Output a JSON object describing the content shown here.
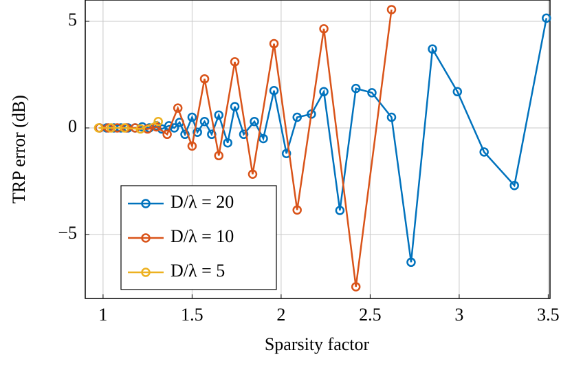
{
  "chart_data": {
    "type": "line",
    "xlabel": "Sparsity factor",
    "ylabel": "TRP error (dB)",
    "xlim": [
      0.9,
      3.51
    ],
    "ylim": [
      -8,
      6
    ],
    "xticks": [
      1,
      1.5,
      2,
      2.5,
      3,
      3.5
    ],
    "yticks": [
      {
        "value": -5,
        "label": "−5"
      },
      0,
      5
    ],
    "grid": true,
    "legend": "lower left",
    "series": [
      {
        "name": "D/λ = 20",
        "color": "#0072bd",
        "x": [
          0.98,
          1.02,
          1.06,
          1.1,
          1.14,
          1.18,
          1.22,
          1.26,
          1.3,
          1.33,
          1.37,
          1.4,
          1.43,
          1.46,
          1.5,
          1.53,
          1.57,
          1.61,
          1.65,
          1.7,
          1.74,
          1.79,
          1.85,
          1.9,
          1.96,
          2.03,
          2.09,
          2.17,
          2.24,
          2.33,
          2.42,
          2.51,
          2.62,
          2.73,
          2.85,
          2.99,
          3.14,
          3.31,
          3.49
        ],
        "values": [
          0,
          0,
          0,
          0,
          0,
          0,
          0.05,
          0,
          0.1,
          -0.05,
          0.1,
          0,
          0.26,
          -0.3,
          0.5,
          -0.2,
          0.3,
          -0.3,
          0.6,
          -0.7,
          1.0,
          -0.3,
          0.3,
          -0.5,
          1.75,
          -1.2,
          0.5,
          0.65,
          1.7,
          -3.87,
          1.85,
          1.65,
          0.5,
          -6.3,
          3.7,
          1.7,
          -1.13,
          -2.7,
          5.15
        ]
      },
      {
        "name": "D/λ = 10",
        "color": "#d95319",
        "x": [
          0.98,
          1.03,
          1.08,
          1.13,
          1.18,
          1.25,
          1.3,
          1.36,
          1.42,
          1.5,
          1.57,
          1.65,
          1.74,
          1.84,
          1.96,
          2.09,
          2.24,
          2.42,
          2.62
        ],
        "values": [
          0,
          0,
          0,
          0,
          0,
          -0.05,
          0.05,
          -0.3,
          0.93,
          -0.85,
          2.3,
          -1.3,
          3.1,
          -2.17,
          3.95,
          -3.85,
          4.65,
          -7.45,
          5.55
        ]
      },
      {
        "name": "D/λ = 5",
        "color": "#edb120",
        "x": [
          0.975,
          1.045,
          1.12,
          1.21,
          1.31
        ],
        "values": [
          0,
          0,
          0,
          -0.05,
          0.3
        ]
      }
    ]
  }
}
